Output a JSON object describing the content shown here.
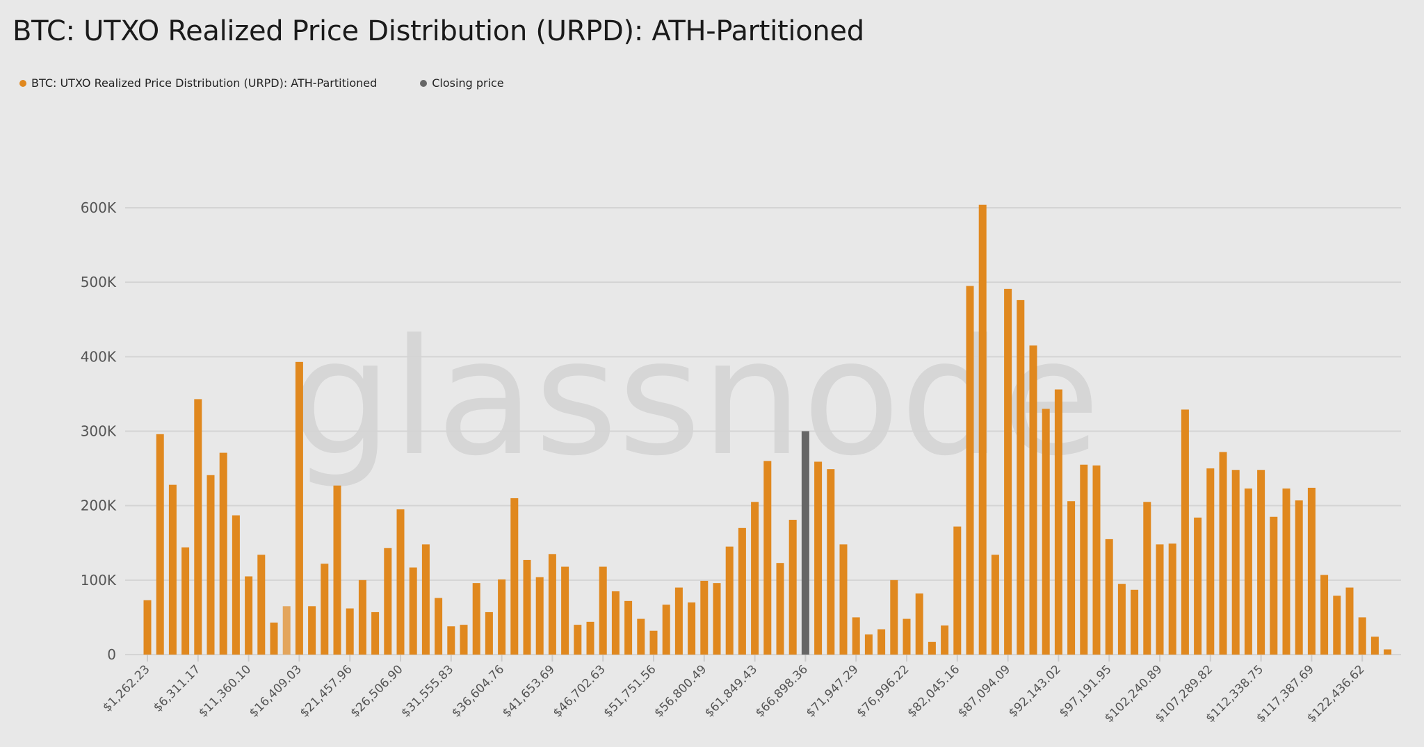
{
  "title": "BTC: UTXO Realized Price Distribution (URPD): ATH-Partitioned",
  "legend": [
    {
      "label": "BTC: UTXO Realized Price Distribution (URPD): ATH-Partitioned",
      "color": "#e0881e"
    },
    {
      "label": "Closing price",
      "color": "#666666"
    }
  ],
  "watermark": "glassnode",
  "chart_data": {
    "type": "bar",
    "title": "BTC: UTXO Realized Price Distribution (URPD): ATH-Partitioned",
    "xlabel": "",
    "ylabel": "",
    "ylim": [
      0,
      620000
    ],
    "yticks": [
      0,
      100000,
      200000,
      300000,
      400000,
      500000,
      600000
    ],
    "ytick_labels": [
      "0",
      "100K",
      "200K",
      "300K",
      "400K",
      "500K",
      "600K"
    ],
    "grid": true,
    "legend_position": "top-left",
    "tick_every": 4,
    "tick_labels": [
      "$1,262.23",
      "$6,311.17",
      "$11,360.10",
      "$16,409.03",
      "$21,457.96",
      "$26,506.90",
      "$31,555.83",
      "$36,604.76",
      "$41,653.69",
      "$46,702.63",
      "$51,751.56",
      "$56,800.49",
      "$61,849.43",
      "$66,898.36",
      "$71,947.29",
      "$76,996.22",
      "$82,045.16",
      "$87,094.09",
      "$92,143.02",
      "$97,191.95",
      "$102,240.89",
      "$107,289.82",
      "$112,338.75",
      "$117,387.69",
      "$122,436.62"
    ],
    "series": [
      {
        "name": "BTC: UTXO Realized Price Distribution (URPD): ATH-Partitioned",
        "color": "#e0881e",
        "values": [
          73000,
          296000,
          228000,
          144000,
          343000,
          241000,
          271000,
          187000,
          105000,
          134000,
          43000,
          65000,
          393000,
          65000,
          122000,
          227000,
          62000,
          100000,
          57000,
          143000,
          195000,
          117000,
          148000,
          76000,
          38000,
          40000,
          96000,
          57000,
          101000,
          210000,
          127000,
          104000,
          135000,
          118000,
          40000,
          44000,
          118000,
          85000,
          72000,
          48000,
          32000,
          67000,
          90000,
          70000,
          99000,
          96000,
          145000,
          170000,
          205000,
          260000,
          123000,
          181000,
          300000,
          259000,
          249000,
          148000,
          50000,
          27000,
          34000,
          100000,
          48000,
          82000,
          17000,
          39000,
          172000,
          495000,
          604000,
          134000,
          491000,
          476000,
          415000,
          330000,
          356000,
          206000,
          255000,
          254000,
          155000,
          95000,
          87000,
          205000,
          148000,
          149000,
          329000,
          184000,
          250000,
          272000,
          248000,
          223000,
          248000,
          185000,
          223000,
          207000,
          224000,
          107000,
          79000,
          90000,
          50000,
          24000,
          7000
        ]
      }
    ],
    "closing_price_bar_index": 52,
    "closing_price_label": "$66,898.36",
    "closing_price_color": "#666666",
    "faded_bar_index": 11,
    "faded_bar_color": "#e3a55c"
  }
}
